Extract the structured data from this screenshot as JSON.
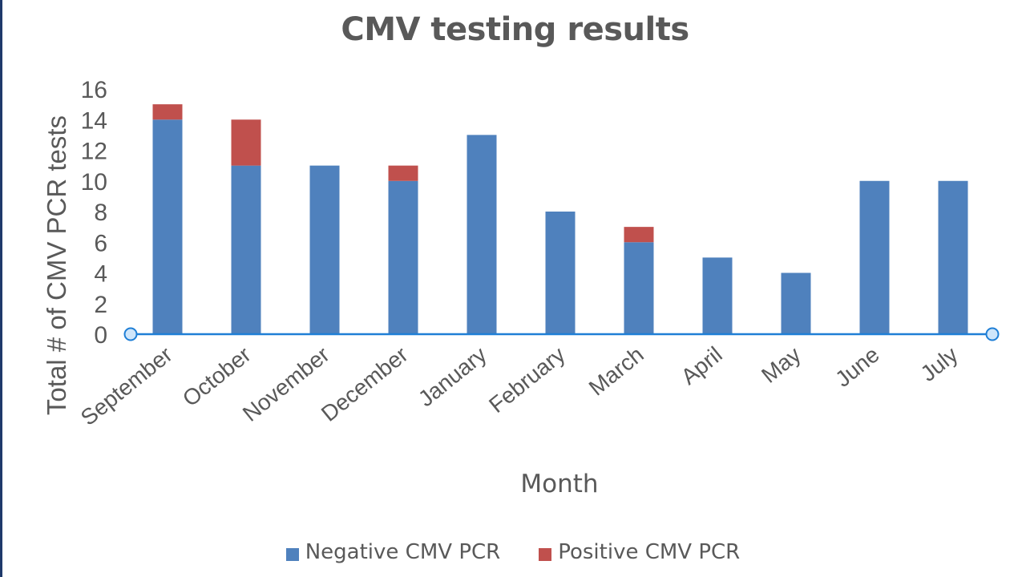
{
  "chart_data": {
    "type": "bar",
    "stacked": true,
    "title": "CMV testing results",
    "xlabel": "Month",
    "ylabel": "Total # of CMV PCR tests",
    "ylim": [
      0,
      16
    ],
    "yticks": [
      "0",
      "2",
      "4",
      "6",
      "8",
      "10",
      "12",
      "14",
      "16"
    ],
    "grid": false,
    "legend_position": "bottom",
    "categories": [
      "September",
      "October",
      "November",
      "December",
      "January",
      "February",
      "March",
      "April",
      "May",
      "June",
      "July"
    ],
    "series": [
      {
        "name": "Negative CMV PCR",
        "color": "#4f81bd",
        "values": [
          14,
          11,
          11,
          10,
          13,
          8,
          6,
          5,
          4,
          10,
          10
        ]
      },
      {
        "name": "Positive CMV PCR",
        "color": "#c0504d",
        "values": [
          1,
          3,
          0,
          1,
          0,
          0,
          1,
          0,
          0,
          0,
          0
        ]
      }
    ],
    "axis_color": "#1f7fd6"
  }
}
